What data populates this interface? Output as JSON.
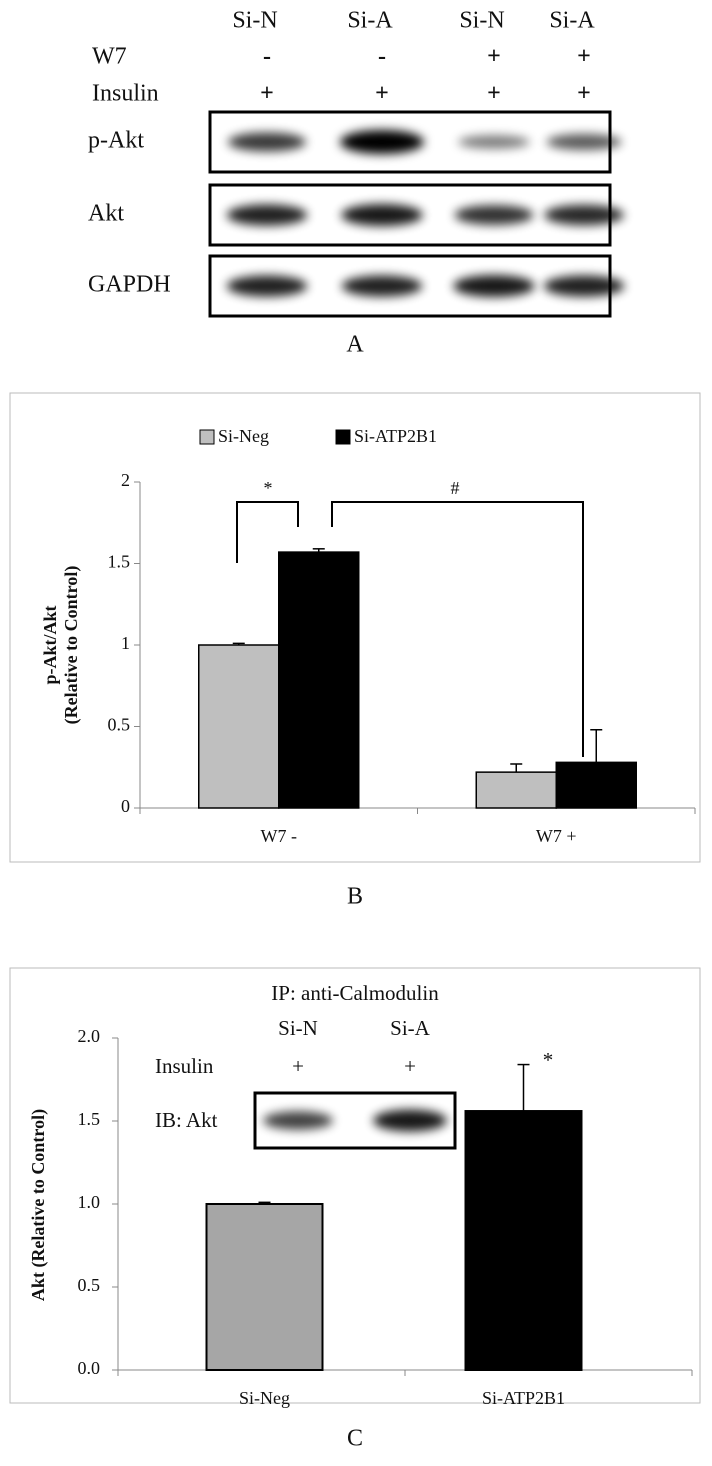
{
  "blot_a": {
    "columns": [
      "Si-N",
      "Si-A",
      "Si-N",
      "Si-A"
    ],
    "conditions": [
      {
        "label": "W7",
        "marks": [
          "-",
          "-",
          "+",
          "+"
        ]
      },
      {
        "label": "Insulin",
        "marks": [
          "+",
          "+",
          "+",
          "+"
        ]
      }
    ],
    "blots": [
      "p-Akt",
      "Akt",
      "GAPDH"
    ],
    "panel_label": "A"
  },
  "chart_data": [
    {
      "type": "bar",
      "panel_label": "B",
      "y_label": [
        "p-Akt/Akt",
        "(Relative to Control)"
      ],
      "categories": [
        "W7 -",
        "W7 +"
      ],
      "series": [
        {
          "name": "Si-Neg",
          "color": "#bfbfbf",
          "values": [
            1,
            0.22
          ],
          "errors": [
            0.01,
            0.05
          ]
        },
        {
          "name": "Si-ATP2B1",
          "color": "#000000",
          "values": [
            1.57,
            0.28
          ],
          "errors": [
            0.02,
            0.2
          ]
        }
      ],
      "ylim": [
        0,
        2
      ],
      "yticks": [
        0,
        0.5,
        1,
        1.5,
        2
      ],
      "legend": "top",
      "annotations": [
        "*",
        "#"
      ]
    },
    {
      "type": "bar",
      "panel_label": "C",
      "title": "IP: anti-Calmodulin",
      "y_label": "Akt (Relative to Control)",
      "categories": [
        "Si-Neg",
        "Si-ATP2B1"
      ],
      "values": [
        1,
        1.56
      ],
      "errors": [
        0.01,
        0.28
      ],
      "colors": [
        "#a6a6a6",
        "#000000"
      ],
      "ylim": [
        0,
        2
      ],
      "yticks": [
        {
          "value": 0,
          "label": "0.0"
        },
        {
          "value": 0.5,
          "label": "0.5"
        },
        {
          "value": 1,
          "label": "1.0"
        },
        {
          "value": 1.5,
          "label": "1.5"
        },
        {
          "value": 2,
          "label": "2.0"
        }
      ],
      "annotations": [
        "*"
      ],
      "inset": {
        "columns": [
          "Si-N",
          "Si-A"
        ],
        "row_label": "Insulin",
        "row_marks": [
          "+",
          "+"
        ],
        "blot_label": "IB: Akt"
      }
    }
  ]
}
